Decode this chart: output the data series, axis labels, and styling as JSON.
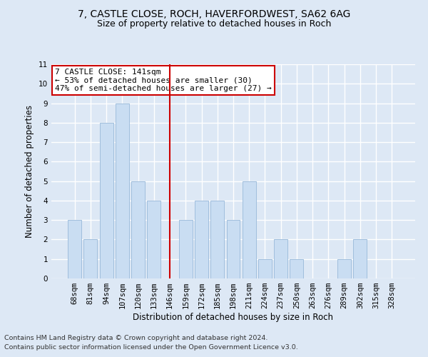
{
  "title_line1": "7, CASTLE CLOSE, ROCH, HAVERFORDWEST, SA62 6AG",
  "title_line2": "Size of property relative to detached houses in Roch",
  "xlabel": "Distribution of detached houses by size in Roch",
  "ylabel": "Number of detached properties",
  "categories": [
    "68sqm",
    "81sqm",
    "94sqm",
    "107sqm",
    "120sqm",
    "133sqm",
    "146sqm",
    "159sqm",
    "172sqm",
    "185sqm",
    "198sqm",
    "211sqm",
    "224sqm",
    "237sqm",
    "250sqm",
    "263sqm",
    "276sqm",
    "289sqm",
    "302sqm",
    "315sqm",
    "328sqm"
  ],
  "values": [
    3,
    2,
    8,
    9,
    5,
    4,
    0,
    3,
    4,
    4,
    3,
    5,
    1,
    2,
    1,
    0,
    0,
    1,
    2,
    0,
    0
  ],
  "bar_color": "#c9ddf2",
  "bar_edgecolor": "#a0bedd",
  "marker_index": 6,
  "marker_color": "#cc0000",
  "annotation_text": "7 CASTLE CLOSE: 141sqm\n← 53% of detached houses are smaller (30)\n47% of semi-detached houses are larger (27) →",
  "annotation_box_edgecolor": "#cc0000",
  "annotation_box_facecolor": "#ffffff",
  "ylim": [
    0,
    11
  ],
  "yticks": [
    0,
    1,
    2,
    3,
    4,
    5,
    6,
    7,
    8,
    9,
    10,
    11
  ],
  "footer_line1": "Contains HM Land Registry data © Crown copyright and database right 2024.",
  "footer_line2": "Contains public sector information licensed under the Open Government Licence v3.0.",
  "background_color": "#dde8f5",
  "grid_color": "#ffffff",
  "title_fontsize": 10,
  "subtitle_fontsize": 9,
  "axis_label_fontsize": 8.5,
  "tick_fontsize": 7.5,
  "footer_fontsize": 6.8,
  "annotation_fontsize": 8
}
